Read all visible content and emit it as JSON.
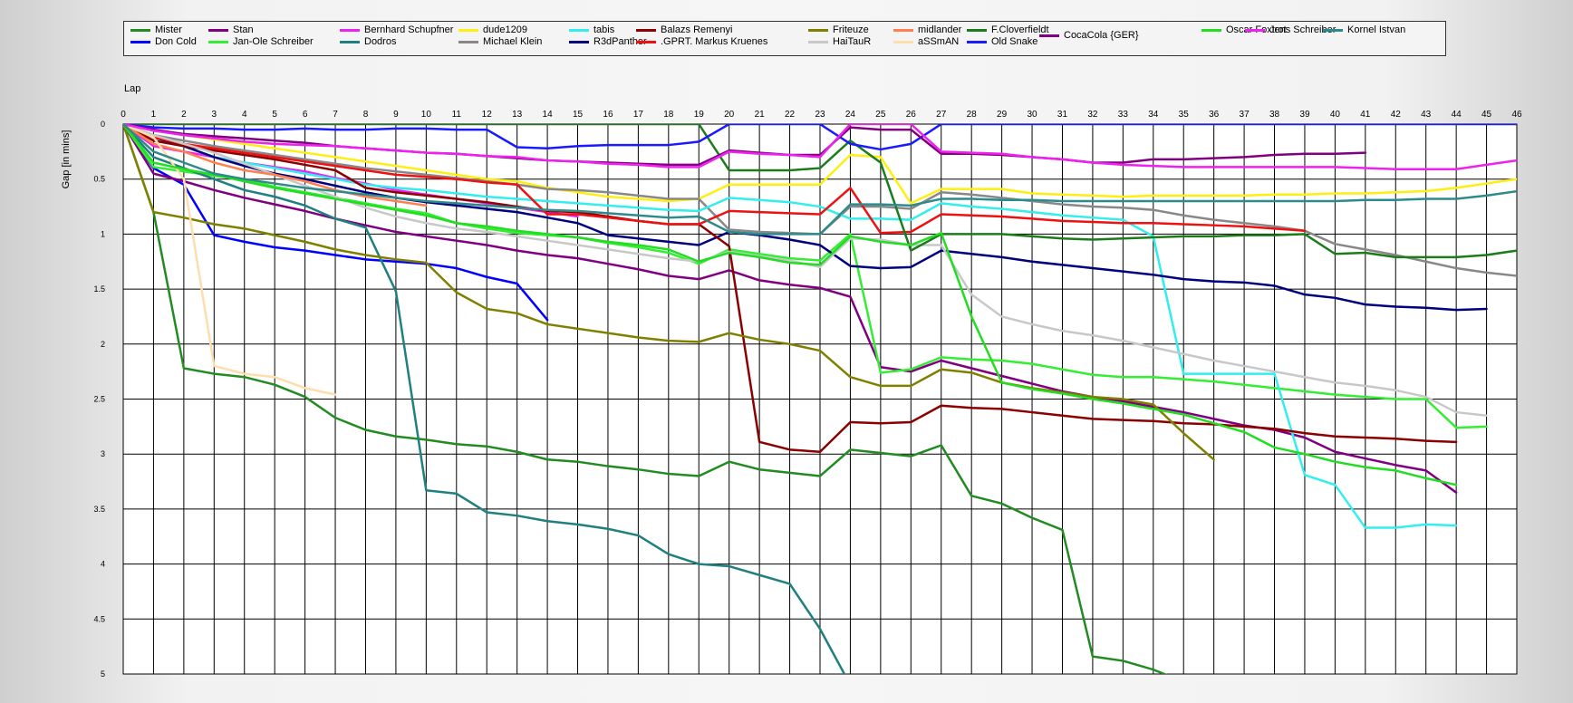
{
  "chart_data": {
    "type": "line",
    "xlabel": "Lap",
    "ylabel": "Gap [in mins]",
    "xlim": [
      0,
      46
    ],
    "ylim": [
      0,
      5
    ],
    "y_inverted": true,
    "grid": true,
    "legend_position": "top",
    "xticks": [
      "0",
      "1",
      "2",
      "3",
      "4",
      "5",
      "6",
      "7",
      "8",
      "9",
      "10",
      "11",
      "12",
      "13",
      "14",
      "15",
      "16",
      "17",
      "18",
      "19",
      "20",
      "21",
      "22",
      "23",
      "24",
      "25",
      "26",
      "27",
      "28",
      "29",
      "30",
      "31",
      "32",
      "33",
      "34",
      "35",
      "36",
      "37",
      "38",
      "39",
      "40",
      "41",
      "42",
      "43",
      "44",
      "45",
      "46"
    ],
    "yticks": [
      "0",
      "0.5",
      "1",
      "1.5",
      "2",
      "2.5",
      "3",
      "3.5",
      "4",
      "4.5",
      "5"
    ],
    "series": [
      {
        "name": "Mister",
        "color": "#228B22",
        "values": [
          0,
          0.8,
          2.22,
          2.27,
          2.3,
          2.37,
          2.48,
          2.67,
          2.78,
          2.84,
          2.87,
          2.91,
          2.93,
          2.98,
          3.05,
          3.07,
          3.11,
          3.14,
          3.18,
          3.2,
          3.07,
          3.14,
          3.17,
          3.2,
          2.96,
          2.99,
          3.02,
          2.92,
          3.38,
          3.45,
          3.58,
          3.69,
          4.84,
          4.88,
          4.96,
          5.07
        ]
      },
      {
        "name": "Don Cold",
        "color": "#0000FF",
        "values": [
          0,
          0.4,
          0.55,
          1.01,
          1.07,
          1.12,
          1.15,
          1.19,
          1.23,
          1.25,
          1.27,
          1.31,
          1.39,
          1.45,
          1.78
        ]
      },
      {
        "name": "Stan",
        "color": "#800080",
        "values": [
          0,
          0.45,
          0.52,
          0.6,
          0.67,
          0.73,
          0.79,
          0.86,
          0.92,
          0.98,
          1.02,
          1.06,
          1.1,
          1.15,
          1.19,
          1.22,
          1.27,
          1.32,
          1.38,
          1.41,
          1.33,
          1.42,
          1.46,
          1.49,
          1.57,
          2.21,
          2.25,
          2.15,
          2.22,
          2.29,
          2.36,
          2.43,
          2.48,
          2.52,
          2.57,
          2.62,
          2.68,
          2.74,
          2.78,
          2.85,
          2.98,
          3.04,
          3.1,
          3.15,
          3.35
        ]
      },
      {
        "name": "Jan-Ole Schreiber",
        "color": "#33EE33",
        "values": [
          0,
          0.39,
          0.43,
          0.47,
          0.5,
          0.57,
          0.62,
          0.67,
          0.72,
          0.77,
          0.81,
          0.9,
          0.95,
          0.99,
          1.01,
          1.03,
          1.08,
          1.12,
          1.17,
          1.27,
          1.14,
          1.18,
          1.22,
          1.24,
          1.0,
          2.26,
          2.23,
          2.12,
          2.14,
          2.15,
          2.18,
          2.23,
          2.28,
          2.3,
          2.3,
          2.32,
          2.34,
          2.37,
          2.4,
          2.43,
          2.46,
          2.48,
          2.5,
          2.5,
          2.76,
          2.75
        ]
      },
      {
        "name": "Bernhard Schupfner",
        "color": "#EE22EE",
        "values": [
          0,
          0.2,
          0.25,
          0.3,
          0.35,
          0.39,
          0.43,
          0.49,
          0.54,
          0.6,
          0.64,
          0.68,
          0.72,
          0.76,
          0.8,
          0.84
        ]
      },
      {
        "name": "Dodros",
        "color": "#208080",
        "values": [
          0,
          0.3,
          0.4,
          0.5,
          0.6,
          0.66,
          0.74,
          0.86,
          0.94,
          1.52,
          3.33,
          3.36,
          3.53,
          3.56,
          3.61,
          3.64,
          3.68,
          3.74,
          3.91,
          4.0,
          4.02,
          4.1,
          4.18,
          4.59,
          5.1
        ]
      },
      {
        "name": "dude1209",
        "color": "#FFEE11",
        "values": [
          0,
          0.05,
          0.1,
          0.14,
          0.18,
          0.22,
          0.26,
          0.3,
          0.34,
          0.38,
          0.42,
          0.46,
          0.5,
          0.52,
          0.58,
          0.62,
          0.66,
          0.68,
          0.7,
          0.68,
          0.55,
          0.55,
          0.55,
          0.55,
          0.28,
          0.3,
          0.72,
          0.59,
          0.59,
          0.59,
          0.63,
          0.64,
          0.65,
          0.66,
          0.65,
          0.65,
          0.65,
          0.65,
          0.64,
          0.64,
          0.63,
          0.63,
          0.62,
          0.61,
          0.58,
          0.54,
          0.5
        ]
      },
      {
        "name": "Michael Klein",
        "color": "#888888",
        "values": [
          0,
          0.1,
          0.15,
          0.2,
          0.24,
          0.28,
          0.32,
          0.36,
          0.4,
          0.43,
          0.46,
          0.49,
          0.52,
          0.55,
          0.59,
          0.6,
          0.62,
          0.65,
          0.68,
          0.68,
          0.96,
          0.98,
          0.99,
          1.0,
          0.75,
          0.75,
          0.77,
          0.62,
          0.64,
          0.67,
          0.7,
          0.73,
          0.75,
          0.76,
          0.78,
          0.83,
          0.87,
          0.9,
          0.93,
          0.97,
          1.09,
          1.14,
          1.19,
          1.25,
          1.31,
          1.35,
          1.38
        ]
      },
      {
        "name": "tabis",
        "color": "#33EEEE",
        "values": [
          0,
          0.15,
          0.2,
          0.3,
          0.35,
          0.4,
          0.45,
          0.5,
          0.55,
          0.58,
          0.6,
          0.63,
          0.66,
          0.68,
          0.7,
          0.72,
          0.74,
          0.76,
          0.78,
          0.79,
          0.67,
          0.69,
          0.71,
          0.75,
          0.86,
          0.86,
          0.87,
          0.72,
          0.75,
          0.77,
          0.8,
          0.83,
          0.85,
          0.87,
          1.02,
          2.27,
          2.27,
          2.27,
          2.27,
          3.19,
          3.28,
          3.67,
          3.67,
          3.64,
          3.65
        ]
      },
      {
        "name": "R3dPanther",
        "color": "#00007F",
        "values": [
          0,
          0.12,
          0.2,
          0.3,
          0.38,
          0.45,
          0.5,
          0.56,
          0.62,
          0.67,
          0.71,
          0.74,
          0.77,
          0.8,
          0.85,
          0.9,
          1.01,
          1.04,
          1.07,
          1.1,
          0.98,
          1.01,
          1.05,
          1.1,
          1.29,
          1.31,
          1.3,
          1.15,
          1.18,
          1.21,
          1.25,
          1.28,
          1.31,
          1.34,
          1.37,
          1.41,
          1.43,
          1.44,
          1.47,
          1.55,
          1.58,
          1.64,
          1.66,
          1.67,
          1.69,
          1.68
        ]
      },
      {
        "name": "Balazs Remenyi",
        "color": "#8B0000",
        "values": [
          0,
          0.15,
          0.2,
          0.24,
          0.28,
          0.32,
          0.37,
          0.42,
          0.58,
          0.62,
          0.65,
          0.68,
          0.71,
          0.75,
          0.79,
          0.8,
          0.84,
          0.88,
          0.91,
          0.91,
          1.11,
          2.89,
          2.96,
          2.98,
          2.71,
          2.72,
          2.71,
          2.56,
          2.58,
          2.59,
          2.62,
          2.65,
          2.68,
          2.69,
          2.7,
          2.72,
          2.73,
          2.75,
          2.77,
          2.81,
          2.84,
          2.85,
          2.86,
          2.88,
          2.89
        ]
      },
      {
        "name": ".GPRT. Markus Kruenes",
        "color": "#EE1111",
        "values": [
          0,
          0.12,
          0.18,
          0.22,
          0.26,
          0.3,
          0.34,
          0.38,
          0.42,
          0.46,
          0.48,
          0.5,
          0.53,
          0.55,
          0.82,
          0.82,
          0.85,
          0.88,
          0.91,
          0.91,
          0.79,
          0.8,
          0.81,
          0.82,
          0.58,
          0.99,
          0.98,
          0.82,
          0.83,
          0.84,
          0.86,
          0.88,
          0.89,
          0.9,
          0.9,
          0.91,
          0.92,
          0.93,
          0.95,
          0.97
        ]
      },
      {
        "name": "Friteuze",
        "color": "#808000",
        "values": [
          0,
          0.8,
          0.85,
          0.91,
          0.95,
          1.01,
          1.07,
          1.14,
          1.19,
          1.23,
          1.26,
          1.53,
          1.68,
          1.72,
          1.82,
          1.86,
          1.9,
          1.94,
          1.97,
          1.98,
          1.9,
          1.96,
          2.0,
          2.06,
          2.3,
          2.38,
          2.38,
          2.23,
          2.26,
          2.35,
          2.4,
          2.44,
          2.48,
          2.5,
          2.55,
          2.81,
          3.05
        ]
      },
      {
        "name": "HaiTauR",
        "color": "#C8C8C8",
        "values": [
          0,
          0.1,
          0.18,
          0.26,
          0.36,
          0.46,
          0.56,
          0.66,
          0.76,
          0.84,
          0.9,
          0.95,
          0.98,
          1.02,
          1.06,
          1.1,
          1.14,
          1.18,
          1.22,
          1.25,
          1.16,
          1.2,
          1.24,
          1.3,
          1.04,
          1.05,
          1.1,
          1.1,
          1.55,
          1.75,
          1.82,
          1.88,
          1.92,
          1.97,
          2.03,
          2.09,
          2.15,
          2.2,
          2.25,
          2.3,
          2.35,
          2.38,
          2.42,
          2.48,
          2.62,
          2.65
        ]
      },
      {
        "name": "midlander",
        "color": "#FF7F50",
        "values": [
          0,
          0.18,
          0.25,
          0.35,
          0.42,
          0.46,
          0.52,
          0.6,
          0.66,
          0.7,
          0.74
        ]
      },
      {
        "name": "aSSmAN",
        "color": "#FFDEAD",
        "values": [
          0,
          0.12,
          0.5,
          2.2,
          2.27,
          2.3,
          2.4,
          2.46
        ]
      },
      {
        "name": "F.Cloverfieldt",
        "color": "#1C7C1C",
        "values": [
          0,
          0,
          0,
          0,
          0,
          0,
          0,
          0,
          0,
          0,
          0,
          0,
          0,
          0,
          0,
          0,
          0,
          0,
          0,
          0,
          0.42,
          0.42,
          0.42,
          0.4,
          0.15,
          0.35,
          1.15,
          1.0,
          1.0,
          1.0,
          1.02,
          1.04,
          1.05,
          1.04,
          1.03,
          1.02,
          1.02,
          1.01,
          1.01,
          1.0,
          1.18,
          1.17,
          1.21,
          1.21,
          1.21,
          1.19,
          1.15
        ]
      },
      {
        "name": "Old Snake",
        "color": "#1A1AFF",
        "values": [
          0,
          0.03,
          0.04,
          0.04,
          0.05,
          0.05,
          0.04,
          0.05,
          0.05,
          0.04,
          0.04,
          0.05,
          0.05,
          0.21,
          0.22,
          0.2,
          0.19,
          0.19,
          0.19,
          0.16,
          0,
          0,
          0,
          0,
          0.18,
          0.23,
          0.18,
          0,
          0,
          0,
          0,
          0,
          0,
          0,
          0,
          0,
          0,
          0,
          0,
          0,
          0,
          0,
          0,
          0,
          0,
          0,
          0
        ]
      },
      {
        "name": "CocaCola {GER}",
        "color": "#800080",
        "values": [
          0,
          0.05,
          0.09,
          0.11,
          0.13,
          0.15,
          0.17,
          0.2,
          0.22,
          0.24,
          0.26,
          0.27,
          0.29,
          0.31,
          0.33,
          0.34,
          0.35,
          0.36,
          0.37,
          0.37,
          0.24,
          0.26,
          0.28,
          0.28,
          0.03,
          0.05,
          0.05,
          0.27,
          0.27,
          0.28,
          0.3,
          0.32,
          0.35,
          0.35,
          0.32,
          0.32,
          0.31,
          0.3,
          0.28,
          0.27,
          0.27,
          0.26
        ]
      },
      {
        "name": "Oscar Foxtrot",
        "color": "#22DD22",
        "values": [
          0,
          0.35,
          0.41,
          0.46,
          0.52,
          0.58,
          0.63,
          0.68,
          0.73,
          0.78,
          0.83,
          0.9,
          0.93,
          0.97,
          1.0,
          1.03,
          1.07,
          1.1,
          1.14,
          1.25,
          1.17,
          1.21,
          1.26,
          1.28,
          1.02,
          1.07,
          1.1,
          0.99,
          1.75,
          2.35,
          2.41,
          2.45,
          2.5,
          2.54,
          2.59,
          2.64,
          2.72,
          2.8,
          2.94,
          3.0,
          3.07,
          3.12,
          3.15,
          3.22,
          3.28
        ]
      },
      {
        "name": "Jens Schreiber",
        "color": "#EE22EE",
        "values": [
          0,
          0.06,
          0.1,
          0.13,
          0.16,
          0.18,
          0.19,
          0.2,
          0.22,
          0.24,
          0.26,
          0.27,
          0.29,
          0.3,
          0.33,
          0.34,
          0.36,
          0.37,
          0.39,
          0.39,
          0.25,
          0.27,
          0.28,
          0.3,
          0.0,
          0.0,
          0.0,
          0.25,
          0.26,
          0.27,
          0.3,
          0.32,
          0.35,
          0.37,
          0.38,
          0.39,
          0.39,
          0.39,
          0.39,
          0.39,
          0.39,
          0.4,
          0.41,
          0.41,
          0.41,
          0.37,
          0.33
        ]
      },
      {
        "name": "Kornel Istvan",
        "color": "#2E8B8B",
        "values": [
          0,
          0.25,
          0.35,
          0.45,
          0.5,
          0.54,
          0.58,
          0.61,
          0.64,
          0.67,
          0.7,
          0.72,
          0.74,
          0.76,
          0.78,
          0.79,
          0.81,
          0.83,
          0.85,
          0.84,
          0.98,
          1.0,
          1.0,
          1.0,
          0.73,
          0.73,
          0.74,
          0.68,
          0.68,
          0.69,
          0.69,
          0.7,
          0.7,
          0.7,
          0.7,
          0.7,
          0.7,
          0.7,
          0.7,
          0.7,
          0.7,
          0.69,
          0.69,
          0.68,
          0.68,
          0.65,
          0.61
        ]
      }
    ]
  }
}
